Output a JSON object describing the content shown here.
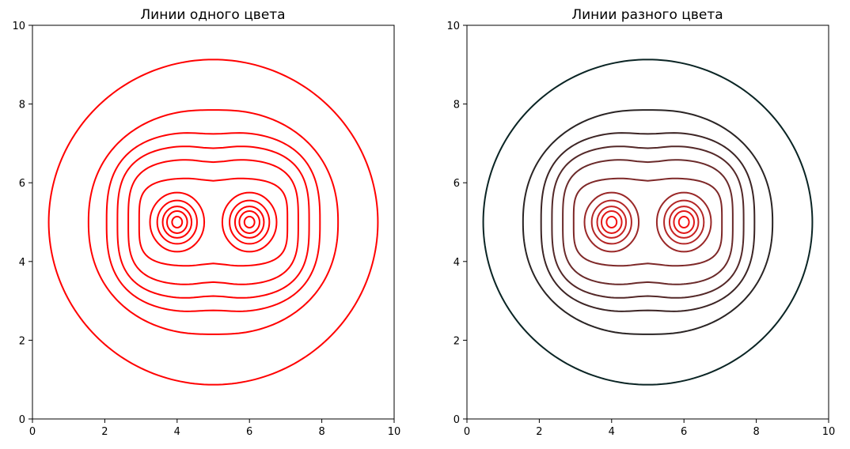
{
  "chart_data": [
    {
      "type": "contour",
      "title": "Линии одного цвета",
      "xlabel": "",
      "ylabel": "",
      "xlim": [
        0,
        10
      ],
      "ylim": [
        0,
        10
      ],
      "xticks": [
        "0",
        "2",
        "4",
        "6",
        "8",
        "10"
      ],
      "yticks": [
        "0",
        "2",
        "4",
        "6",
        "8",
        "10"
      ],
      "grid": false,
      "centers": [
        [
          4,
          5
        ],
        [
          6,
          5
        ]
      ],
      "levels": [
        {
          "x_span": [
            0.45,
            9.55
          ],
          "y_span": [
            0.87,
            9.13
          ],
          "color": "#ff0000"
        },
        {
          "x_span": [
            1.55,
            8.45
          ],
          "y_span": [
            2.13,
            7.87
          ],
          "color": "#ff0000"
        },
        {
          "x_span": [
            2.05,
            7.95
          ],
          "y_span": [
            2.7,
            7.3
          ],
          "color": "#ff0000"
        },
        {
          "x_span": [
            2.35,
            7.65
          ],
          "y_span": [
            3.05,
            6.95
          ],
          "color": "#ff0000"
        },
        {
          "x_span": [
            2.65,
            7.35
          ],
          "y_span": [
            3.4,
            6.6
          ],
          "color": "#ff0000"
        },
        {
          "x_span": [
            2.95,
            7.05
          ],
          "y_span": [
            3.88,
            6.12
          ],
          "color": "#ff0000"
        },
        {
          "x_span": [
            3.25,
            4.75
          ],
          "y_span": [
            4.25,
            5.75
          ],
          "color": "#ff0000",
          "split": true
        },
        {
          "x_span": [
            3.45,
            4.55
          ],
          "y_span": [
            4.45,
            5.55
          ],
          "color": "#ff0000",
          "split": true
        },
        {
          "x_span": [
            3.6,
            4.4
          ],
          "y_span": [
            4.6,
            5.4
          ],
          "color": "#ff0000",
          "split": true
        },
        {
          "x_span": [
            3.72,
            4.28
          ],
          "y_span": [
            4.72,
            5.28
          ],
          "color": "#ff0000",
          "split": true
        },
        {
          "x_span": [
            3.86,
            4.14
          ],
          "y_span": [
            4.86,
            5.14
          ],
          "color": "#ff0000",
          "split": true
        }
      ]
    },
    {
      "type": "contour",
      "title": "Линии разного цвета",
      "xlabel": "",
      "ylabel": "",
      "xlim": [
        0,
        10
      ],
      "ylim": [
        0,
        10
      ],
      "xticks": [
        "0",
        "2",
        "4",
        "6",
        "8",
        "10"
      ],
      "yticks": [
        "0",
        "2",
        "4",
        "6",
        "8",
        "10"
      ],
      "grid": false,
      "centers": [
        [
          4,
          5
        ],
        [
          6,
          5
        ]
      ],
      "levels": [
        {
          "x_span": [
            0.45,
            9.55
          ],
          "y_span": [
            0.87,
            9.13
          ],
          "color": "#0a2424"
        },
        {
          "x_span": [
            1.55,
            8.45
          ],
          "y_span": [
            2.13,
            7.87
          ],
          "color": "#2a2424"
        },
        {
          "x_span": [
            2.05,
            7.95
          ],
          "y_span": [
            2.7,
            7.3
          ],
          "color": "#3c2424"
        },
        {
          "x_span": [
            2.35,
            7.65
          ],
          "y_span": [
            3.05,
            6.95
          ],
          "color": "#542828"
        },
        {
          "x_span": [
            2.65,
            7.35
          ],
          "y_span": [
            3.4,
            6.6
          ],
          "color": "#6a2a2a"
        },
        {
          "x_span": [
            2.95,
            7.05
          ],
          "y_span": [
            3.88,
            6.12
          ],
          "color": "#7e2828"
        },
        {
          "x_span": [
            3.25,
            4.75
          ],
          "y_span": [
            4.25,
            5.75
          ],
          "color": "#9a2828",
          "split": true
        },
        {
          "x_span": [
            3.45,
            4.55
          ],
          "y_span": [
            4.45,
            5.55
          ],
          "color": "#b22626",
          "split": true
        },
        {
          "x_span": [
            3.6,
            4.4
          ],
          "y_span": [
            4.6,
            5.4
          ],
          "color": "#c82222",
          "split": true
        },
        {
          "x_span": [
            3.72,
            4.28
          ],
          "y_span": [
            4.72,
            5.28
          ],
          "color": "#e01818",
          "split": true
        },
        {
          "x_span": [
            3.86,
            4.14
          ],
          "y_span": [
            4.86,
            5.14
          ],
          "color": "#f41010",
          "split": true
        }
      ]
    }
  ]
}
